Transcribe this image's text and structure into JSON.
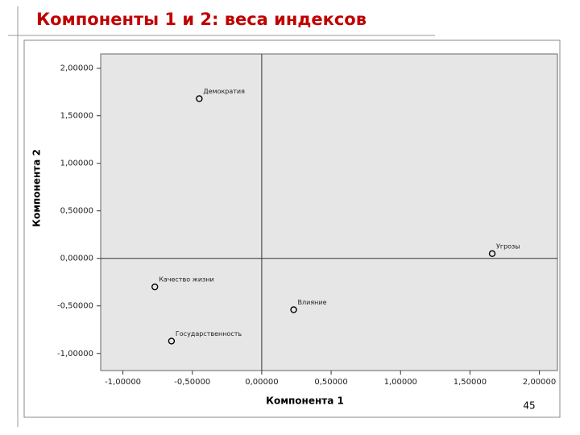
{
  "slide_title": "Компоненты 1 и 2: веса индексов",
  "page_number": "45",
  "chart_data": {
    "type": "scatter",
    "x_label": "Компонента 1",
    "y_label": "Компонента 2",
    "x": [
      -0.45,
      1.66,
      -0.77,
      0.23,
      -0.65
    ],
    "values": [
      1.68,
      0.05,
      -0.3,
      -0.54,
      -0.87
    ],
    "point_labels": [
      "Демократия",
      "Угрозы",
      "Качество жизни",
      "Влияние",
      "Государственность"
    ],
    "color": "#000000",
    "background": "#e6e6e6",
    "xlim": [
      -1.16,
      2.13
    ],
    "ylim": [
      -1.18,
      2.15
    ],
    "xticks": [
      {
        "value": -1,
        "label": "-1,00000"
      },
      {
        "value": -0.5,
        "label": "-0,50000"
      },
      {
        "value": 0,
        "label": "0,00000"
      },
      {
        "value": 0.5,
        "label": "0,50000"
      },
      {
        "value": 1,
        "label": "1,00000"
      },
      {
        "value": 1.5,
        "label": "1,50000"
      },
      {
        "value": 2,
        "label": "2,00000"
      }
    ],
    "yticks": [
      {
        "value": -1,
        "label": "-1,00000"
      },
      {
        "value": -0.5,
        "label": "-0,50000"
      },
      {
        "value": 0,
        "label": "0,00000"
      },
      {
        "value": 0.5,
        "label": "0,50000"
      },
      {
        "value": 1,
        "label": "1,00000"
      },
      {
        "value": 1.5,
        "label": "1,50000"
      },
      {
        "value": 2,
        "label": "2,00000"
      }
    ],
    "zero_lines": true
  }
}
